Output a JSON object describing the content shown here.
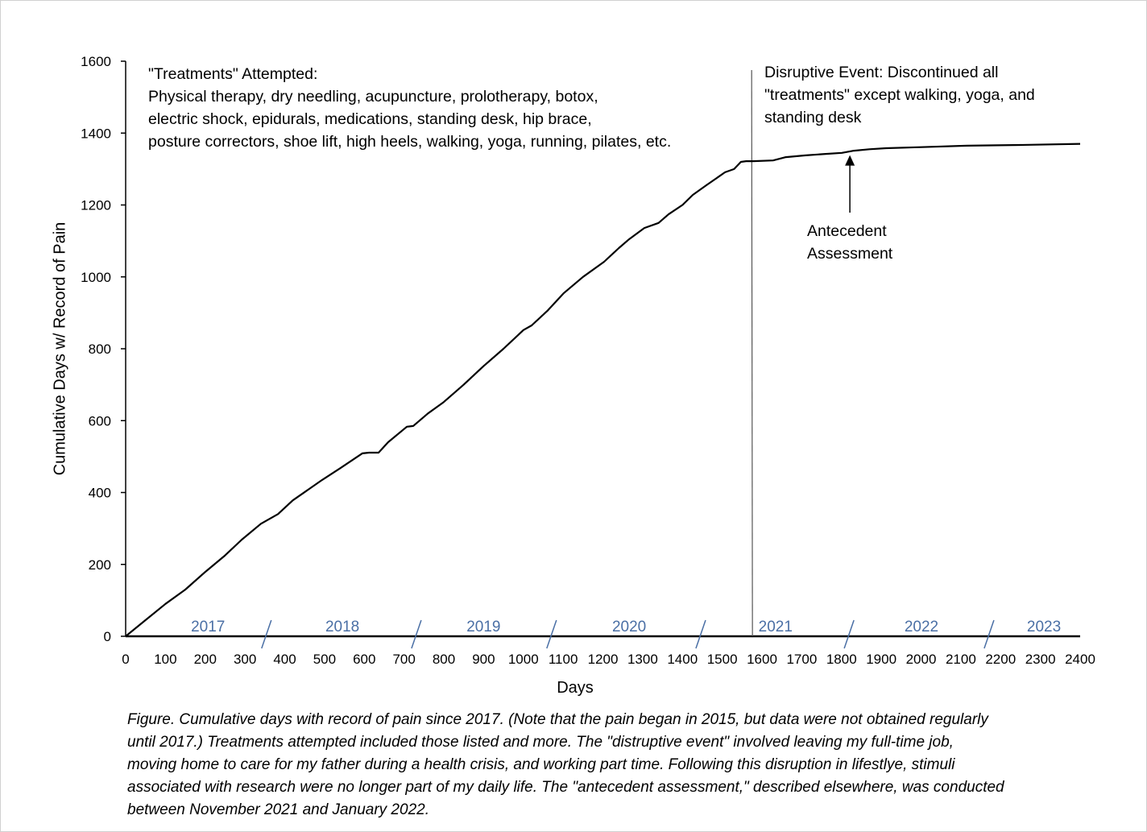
{
  "chart_data": {
    "type": "line",
    "title": "",
    "xlabel": "Days",
    "ylabel": "Cumulative Days w/ Record of Pain",
    "xlim": [
      0,
      2400
    ],
    "ylim": [
      0,
      1600
    ],
    "xticks": [
      0,
      100,
      200,
      300,
      400,
      500,
      600,
      700,
      800,
      900,
      1000,
      1100,
      1200,
      1300,
      1400,
      1500,
      1600,
      1700,
      1800,
      1900,
      2000,
      2100,
      2200,
      2300,
      2400
    ],
    "yticks": [
      0,
      200,
      400,
      600,
      800,
      1000,
      1200,
      1400,
      1600
    ],
    "grid": false,
    "series": [
      {
        "x": [
          0,
          50,
          100,
          150,
          200,
          250,
          292,
          340,
          383,
          420,
          494,
          540,
          595,
          612,
          636,
          660,
          707,
          723,
          760,
          798,
          850,
          899,
          950,
          1000,
          1021,
          1060,
          1102,
          1150,
          1203,
          1240,
          1264,
          1304,
          1340,
          1365,
          1400,
          1426,
          1460,
          1507,
          1530,
          1547,
          1560,
          1578,
          1628,
          1660,
          1710,
          1760,
          1801,
          1831,
          1870,
          1912,
          2000,
          2115,
          2250,
          2400
        ],
        "y": [
          0,
          45,
          90,
          130,
          179,
          225,
          269,
          313,
          340,
          378,
          435,
          468,
          509,
          511,
          511,
          540,
          583,
          585,
          620,
          650,
          700,
          751,
          800,
          852,
          865,
          905,
          955,
          1000,
          1042,
          1080,
          1103,
          1136,
          1150,
          1174,
          1200,
          1228,
          1255,
          1291,
          1300,
          1320,
          1322,
          1322,
          1324,
          1333,
          1338,
          1342,
          1345,
          1351,
          1355,
          1358,
          1361,
          1365,
          1367,
          1370
        ]
      }
    ],
    "vertical_line": {
      "x": 1574
    },
    "year_labels": [
      {
        "label": "2017",
        "x": 207
      },
      {
        "label": "2018",
        "x": 545
      },
      {
        "label": "2019",
        "x": 900
      },
      {
        "label": "2020",
        "x": 1266
      },
      {
        "label": "2021",
        "x": 1634
      },
      {
        "label": "2022",
        "x": 2001
      },
      {
        "label": "2023",
        "x": 2309
      }
    ],
    "year_dividers": [
      354,
      731,
      1071,
      1446,
      1819,
      2171
    ],
    "arrow": {
      "x": 1821,
      "y": 1352
    },
    "colors": {
      "line": "#000000",
      "year_labels": "#4a6fa5"
    },
    "annotations": {
      "treatments": "\"Treatments\" Attempted:\nPhysical therapy, dry needling, acupuncture, prolotherapy, botox,\nelectric shock, epidurals, medications, standing desk, hip brace,\nposture correctors, shoe lift, high heels, walking, yoga, running, pilates, etc.",
      "disruptive": "Disruptive Event: Discontinued all\n\"treatments\" except walking, yoga, and\nstanding desk",
      "antecedent": "Antecedent\nAssessment"
    }
  },
  "caption": [
    "Figure. Cumulative days with record of pain since 2017. (Note that the pain began in 2015, but data were not obtained regularly",
    "until 2017.) Treatments attempted included those listed and more. The \"distruptive event\"  involved leaving my full-time job,",
    "moving home to care for my father during a health crisis, and working part time. Following this disruption in lifestlye, stimuli",
    "associated with research were no longer part of my daily life. The \"antecedent assessment,\" described elsewhere, was conducted",
    "between November 2021 and January 2022."
  ]
}
